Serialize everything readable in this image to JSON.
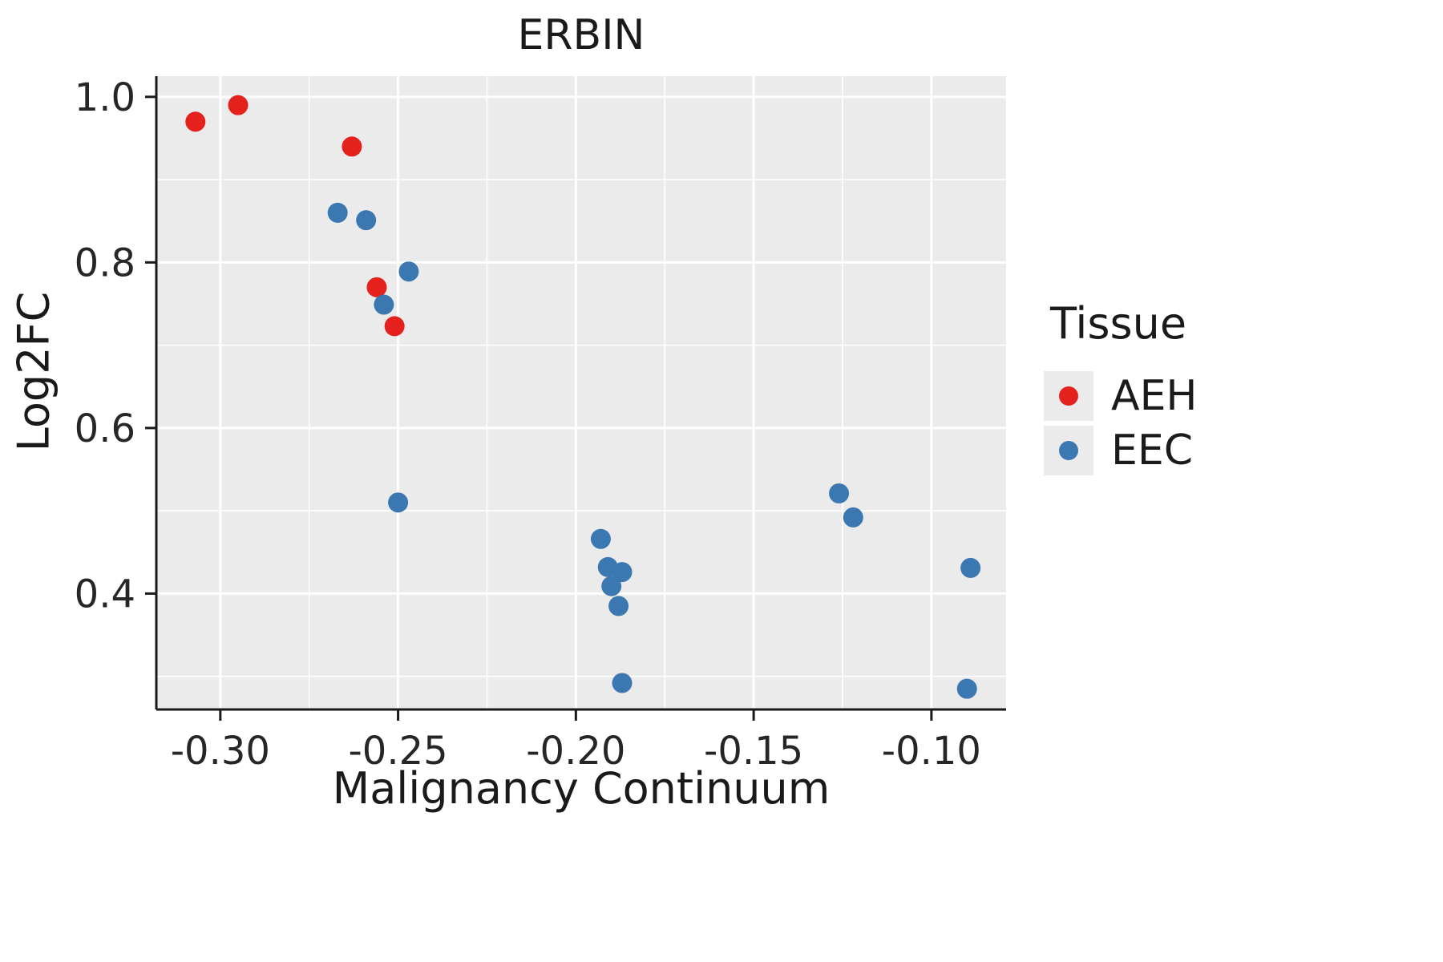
{
  "title": "ERBIN",
  "chart_data": {
    "type": "scatter",
    "title": "ERBIN",
    "xlabel": "Malignancy Continuum",
    "ylabel": "Log2FC",
    "xlim": [
      -0.318,
      -0.079
    ],
    "ylim": [
      0.26,
      1.025
    ],
    "x_ticks": [
      -0.3,
      -0.25,
      -0.2,
      -0.15,
      -0.1
    ],
    "x_tick_labels": [
      "-0.30",
      "-0.25",
      "-0.20",
      "-0.15",
      "-0.10"
    ],
    "y_ticks": [
      0.4,
      0.6,
      0.8,
      1.0
    ],
    "y_tick_labels": [
      "0.4",
      "0.6",
      "0.8",
      "1.0"
    ],
    "grid": true,
    "panel_bg": "#EBEBEB",
    "grid_color": "#FFFFFF",
    "axis_color": "#1a1a1a",
    "legend": {
      "title": "Tissue",
      "position": "right"
    },
    "series": [
      {
        "name": "AEH",
        "color": "#E4211C",
        "points": [
          [
            -0.307,
            0.97
          ],
          [
            -0.295,
            0.99
          ],
          [
            -0.263,
            0.94
          ],
          [
            -0.256,
            0.77
          ],
          [
            -0.251,
            0.723
          ]
        ]
      },
      {
        "name": "EEC",
        "color": "#3B78B2",
        "points": [
          [
            -0.267,
            0.86
          ],
          [
            -0.259,
            0.851
          ],
          [
            -0.254,
            0.749
          ],
          [
            -0.247,
            0.789
          ],
          [
            -0.25,
            0.51
          ],
          [
            -0.193,
            0.466
          ],
          [
            -0.191,
            0.432
          ],
          [
            -0.187,
            0.426
          ],
          [
            -0.19,
            0.409
          ],
          [
            -0.188,
            0.385
          ],
          [
            -0.187,
            0.292
          ],
          [
            -0.126,
            0.521
          ],
          [
            -0.122,
            0.492
          ],
          [
            -0.089,
            0.431
          ],
          [
            -0.09,
            0.285
          ]
        ]
      }
    ]
  }
}
